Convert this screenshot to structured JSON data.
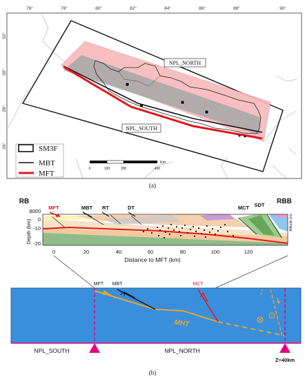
{
  "map": {
    "lon_ticks": [
      "76°",
      "78°",
      "80°",
      "82°",
      "84°",
      "86°",
      "88°",
      "90°"
    ],
    "lat_ticks": [
      "32°",
      "30°",
      "28°",
      "26°"
    ],
    "region_north": "NPL_NORTH",
    "region_south": "NPL_SOUTH",
    "legend": {
      "sm3f": "SM3F",
      "mbt": "MBT",
      "mft": "MFT"
    },
    "scale": {
      "unit": "Km",
      "ticks": [
        "0",
        "100",
        "200",
        "400"
      ]
    },
    "panel_label": "(a)",
    "colors": {
      "mft": "#e8141c",
      "band_pink": "#f7b9bb",
      "band_gray": "#a9a9a9"
    }
  },
  "cross_section": {
    "left_end": "RB",
    "right_end": "RBB",
    "faults": [
      "MFT",
      "MBT",
      "RT",
      "DT",
      "MCT",
      "SDT"
    ],
    "y_axis_label": "Depth (km)",
    "altitude_label": "Altitude (m)",
    "altitude_tick": "8000",
    "y_ticks": [
      "0",
      "-10",
      "-20"
    ],
    "x_ticks": [
      "0",
      "20",
      "40",
      "60",
      "80",
      "100",
      "120"
    ],
    "x_label": "Distance to MFT (km)"
  },
  "model": {
    "faults": [
      "MFT",
      "MBT",
      "MCT"
    ],
    "mht_label": "MHT",
    "bottom_left_label": "NPL_SOUTH",
    "bottom_mid_label": "NPL_NORTH",
    "depth_label": "Z=40km",
    "panel_label": "(b)",
    "colors": {
      "background": "#3a8fdc",
      "mht": "#f2a91f",
      "boundary": "#e6007e"
    }
  }
}
